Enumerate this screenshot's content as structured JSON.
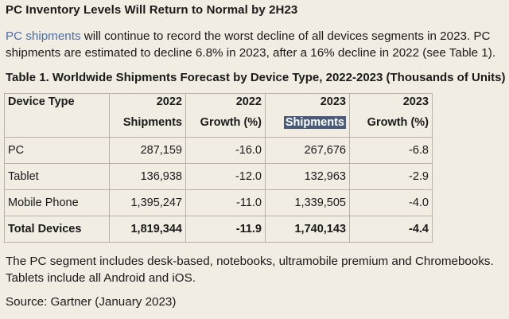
{
  "heading": "PC Inventory Levels Will Return to Normal by 2H23",
  "intro": {
    "link_text": "PC shipments",
    "text": " will continue to record the worst decline of all devices segments in 2023. PC shipments are estimated to decline 6.8% in 2023, after a 16% decline in 2022 (see Table 1)."
  },
  "table": {
    "title": "Table 1. Worldwide Shipments Forecast by Device Type, 2022-2023 (Thousands of Units)",
    "columns": [
      {
        "line1": "Device Type",
        "line2": ""
      },
      {
        "line1": "2022",
        "line2": "Shipments"
      },
      {
        "line1": "2022",
        "line2": "Growth (%)"
      },
      {
        "line1": "2023",
        "line2": "Shipments"
      },
      {
        "line1": "2023",
        "line2": "Growth (%)"
      }
    ],
    "rows": [
      [
        "PC",
        "287,159",
        "-16.0",
        "267,676",
        "-6.8"
      ],
      [
        "Tablet",
        "136,938",
        "-12.0",
        "132,963",
        "-2.9"
      ],
      [
        "Mobile Phone",
        "1,395,247",
        "-11.0",
        "1,339,505",
        "-4.0"
      ]
    ],
    "total": [
      "Total Devices",
      "1,819,344",
      "-11.9",
      "1,740,143",
      "-4.4"
    ]
  },
  "notes": "The PC segment includes desk-based, notebooks, ultramobile premium and Chromebooks. Tablets include all Android and iOS.",
  "source": "Source: Gartner (January 2023)"
}
